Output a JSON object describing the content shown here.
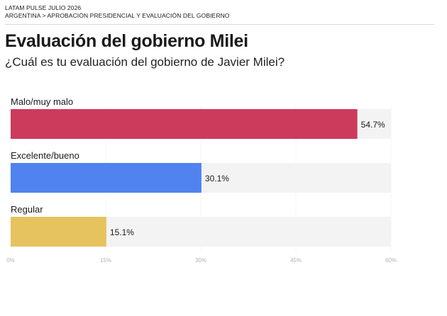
{
  "header": {
    "kicker_line1": "LATAM PULSE JULIO 2026",
    "kicker_line2": "ARGENTINA > APROBACIÓN PRESIDENCIAL Y EVALUACIÓN DEL GOBIERNO"
  },
  "chart_data": {
    "type": "bar",
    "orientation": "horizontal",
    "title": "Evaluación del gobierno Milei",
    "subtitle": "¿Cuál es tu evaluación del gobierno de Javier Milei?",
    "categories": [
      "Malo/muy malo",
      "Excelente/bueno",
      "Regular"
    ],
    "values": [
      54.7,
      30.1,
      15.1
    ],
    "value_labels": [
      "54.7%",
      "30.1%",
      "15.1%"
    ],
    "colors": [
      "#cc3b5c",
      "#5083ef",
      "#e6c35e"
    ],
    "track_color": "#f3f3f3",
    "xlim": [
      0,
      60
    ],
    "xticks": [
      0,
      15,
      30,
      45,
      60
    ],
    "xtick_labels": [
      "0%",
      "15%",
      "30%",
      "45%",
      "60%"
    ],
    "grid": true,
    "legend": "none"
  }
}
